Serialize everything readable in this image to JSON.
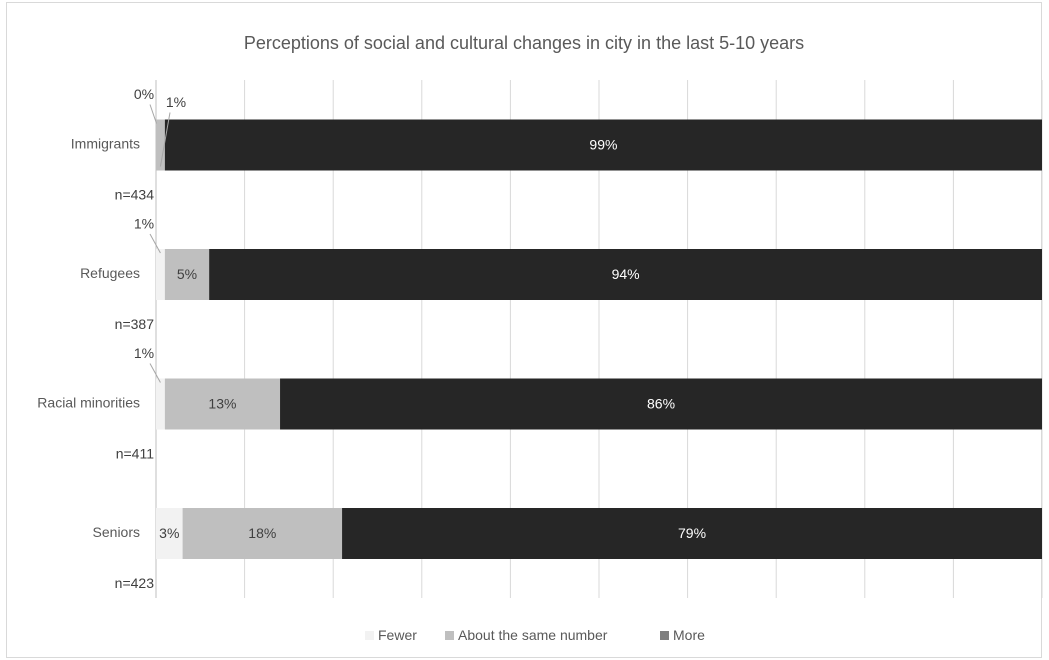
{
  "chart_data": {
    "type": "bar",
    "orientation": "horizontal",
    "stacked": true,
    "title": "Perceptions of social and cultural changes in city in the last 5-10 years",
    "categories": [
      "Immigrants",
      "Refugees",
      "Racial minorities",
      "Seniors"
    ],
    "sample_sizes": [
      "n=434",
      "n=387",
      "n=411",
      "n=423"
    ],
    "series": [
      {
        "name": "Fewer",
        "values": [
          0,
          1,
          1,
          3
        ],
        "labels": [
          "0%",
          "1%",
          "1%",
          "3%"
        ],
        "color": "#f2f2f2"
      },
      {
        "name": "About the same number",
        "values": [
          1,
          5,
          13,
          18
        ],
        "labels": [
          "1%",
          "5%",
          "13%",
          "18%"
        ],
        "color": "#bfbfbf"
      },
      {
        "name": "More",
        "values": [
          99,
          94,
          86,
          79
        ],
        "labels": [
          "99%",
          "94%",
          "86%",
          "79%"
        ],
        "color": "#262626"
      }
    ],
    "legend_colors": [
      "#f2f2f2",
      "#bfbfbf",
      "#7f7f7f"
    ],
    "xlim": [
      0,
      100
    ],
    "grid": true,
    "legend_position": "bottom"
  }
}
